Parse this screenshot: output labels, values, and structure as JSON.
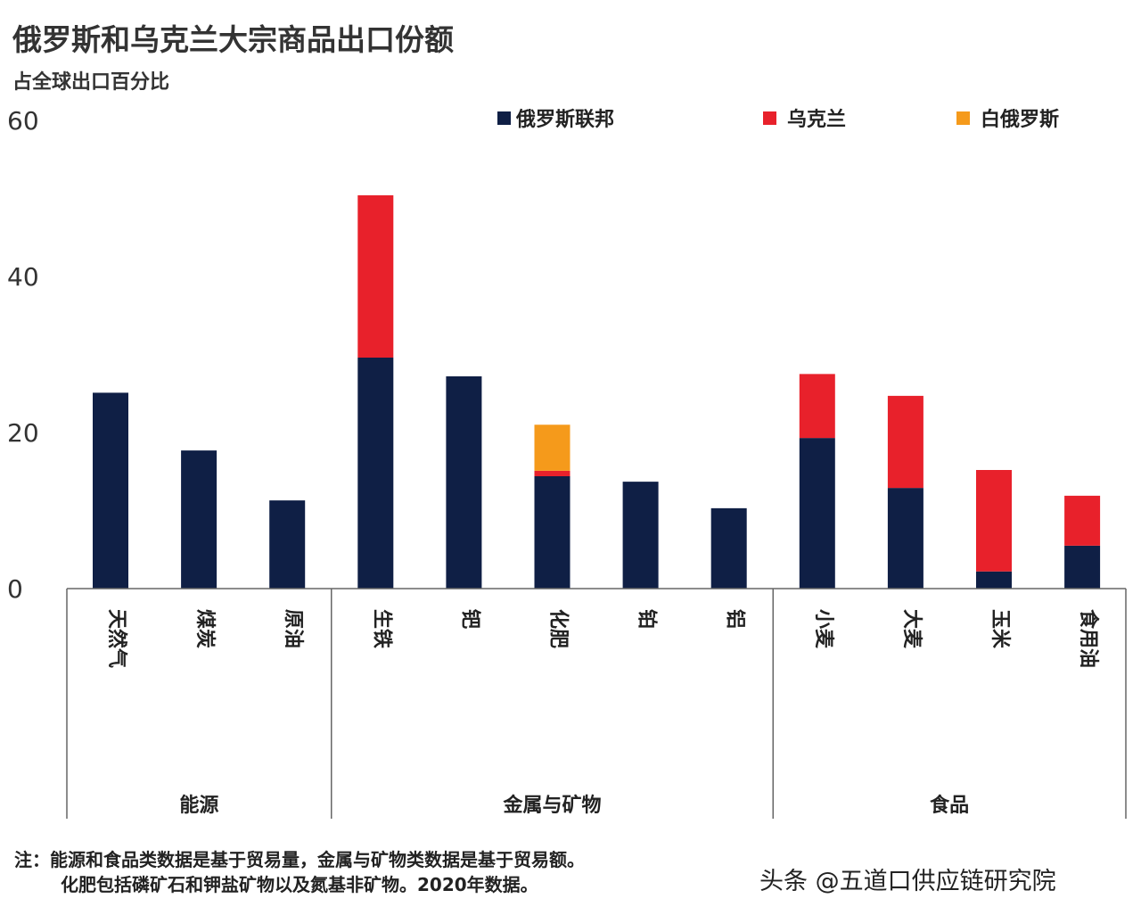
{
  "chart_data": {
    "type": "bar",
    "stacked": true,
    "title": "俄罗斯和乌克兰大宗商品出口份额",
    "subtitle": "占全球出口百分比",
    "ylim": [
      0,
      60
    ],
    "yticks": [
      0,
      20,
      40,
      60
    ],
    "grid": false,
    "legend_position": "top-right",
    "categories": [
      "天然气",
      "煤炭",
      "原油",
      "生铁",
      "钯",
      "化肥",
      "铂",
      "铝",
      "小麦",
      "大麦",
      "玉米",
      "食用油"
    ],
    "groups": [
      {
        "label": "能源",
        "categories": [
          "天然气",
          "煤炭",
          "原油"
        ]
      },
      {
        "label": "金属与矿物",
        "categories": [
          "生铁",
          "钯",
          "化肥",
          "铂",
          "铝"
        ]
      },
      {
        "label": "食品",
        "categories": [
          "小麦",
          "大麦",
          "玉米",
          "食用油"
        ]
      }
    ],
    "series": [
      {
        "name": "俄罗斯联邦",
        "color": "#0f1f45",
        "values": [
          25.1,
          17.7,
          11.3,
          29.6,
          27.2,
          14.4,
          13.7,
          10.3,
          19.3,
          12.9,
          2.2,
          5.5
        ]
      },
      {
        "name": "乌克兰",
        "color": "#e8212b",
        "values": [
          0,
          0,
          0,
          20.8,
          0,
          0.7,
          0,
          0,
          8.2,
          11.8,
          13.0,
          6.4
        ]
      },
      {
        "name": "白俄罗斯",
        "color": "#f59a1b",
        "values": [
          0,
          0,
          0,
          0,
          0,
          5.9,
          0,
          0,
          0,
          0,
          0,
          0
        ]
      }
    ]
  },
  "note": {
    "line1": "注：能源和食品类数据是基于贸易量，金属与矿物类数据是基于贸易额。",
    "line2": "化肥包括磷矿石和钾盐矿物以及氮基非矿物。2020年数据。"
  },
  "watermark": "头条 @五道口供应链研究院"
}
